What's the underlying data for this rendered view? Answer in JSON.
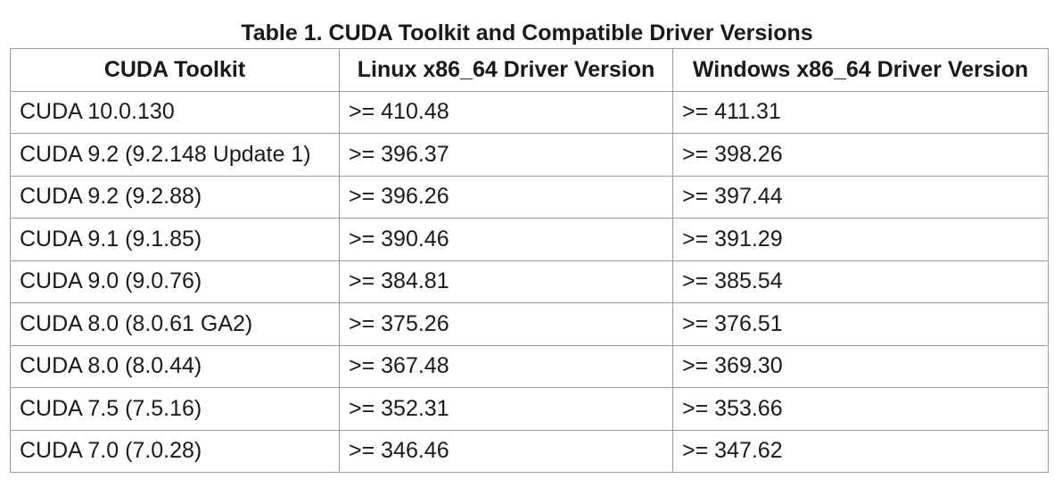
{
  "table": {
    "caption": "Table 1. CUDA Toolkit and Compatible Driver Versions",
    "headers": [
      "CUDA Toolkit",
      "Linux x86_64 Driver Version",
      "Windows x86_64 Driver Version"
    ],
    "rows": [
      [
        "CUDA 10.0.130",
        ">= 410.48",
        ">= 411.31"
      ],
      [
        "CUDA 9.2 (9.2.148 Update 1)",
        ">= 396.37",
        ">= 398.26"
      ],
      [
        "CUDA 9.2 (9.2.88)",
        ">= 396.26",
        ">= 397.44"
      ],
      [
        "CUDA 9.1 (9.1.85)",
        ">= 390.46",
        ">= 391.29"
      ],
      [
        "CUDA 9.0 (9.0.76)",
        ">= 384.81",
        ">= 385.54"
      ],
      [
        "CUDA 8.0 (8.0.61 GA2)",
        ">= 375.26",
        ">= 376.51"
      ],
      [
        "CUDA 8.0 (8.0.44)",
        ">= 367.48",
        ">= 369.30"
      ],
      [
        "CUDA 7.5 (7.5.16)",
        ">= 352.31",
        ">= 353.66"
      ],
      [
        "CUDA 7.0 (7.0.28)",
        ">= 346.46",
        ">= 347.62"
      ]
    ]
  }
}
